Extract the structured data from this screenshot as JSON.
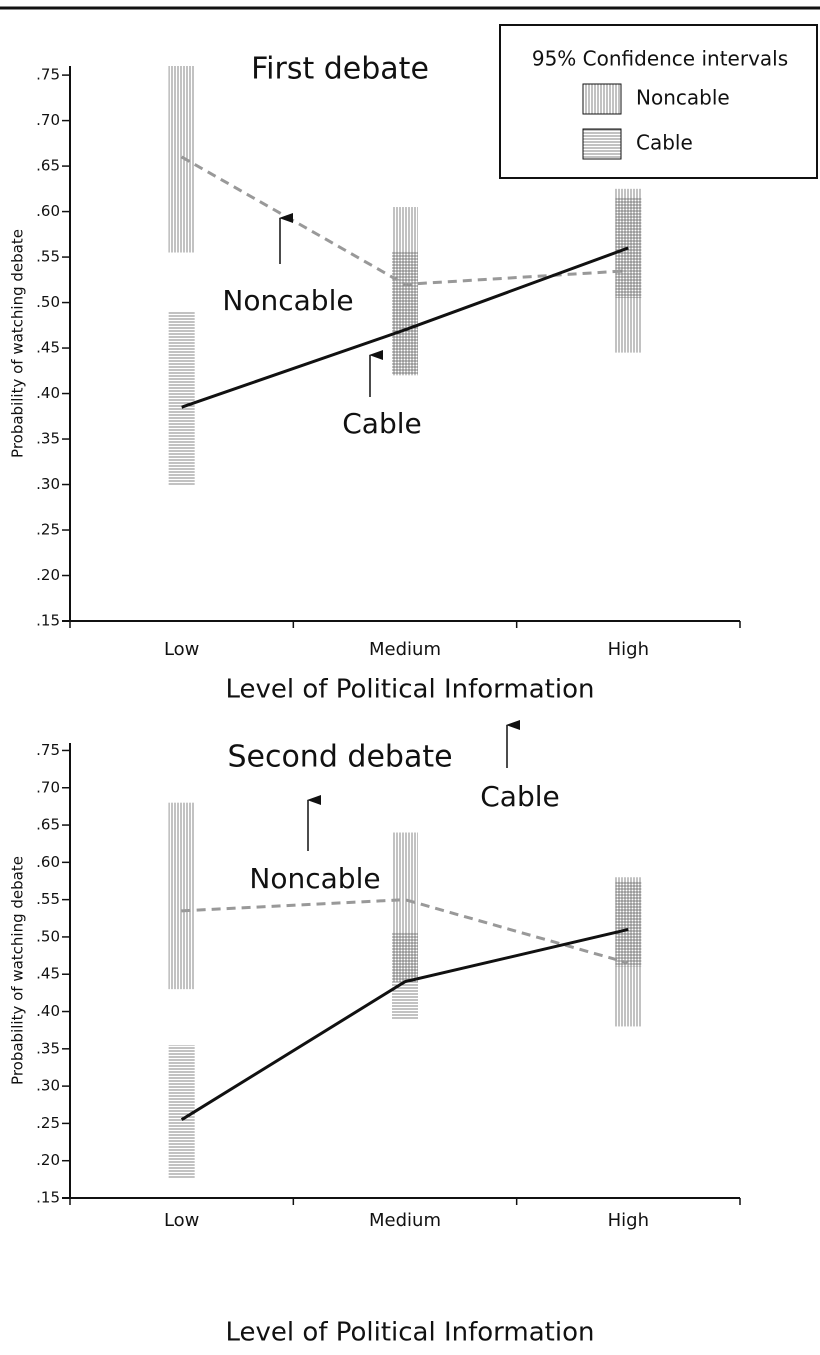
{
  "chart_data": [
    {
      "type": "line",
      "title": "First debate",
      "x_label": "Level of Political Information",
      "y_label": "Probability of watching debate",
      "categories": [
        "Low",
        "Medium",
        "High"
      ],
      "ylim": [
        0.15,
        0.76
      ],
      "yticks": [
        {
          "value": 0.15,
          "label": ".15"
        },
        {
          "value": 0.2,
          "label": ".20"
        },
        {
          "value": 0.25,
          "label": ".25"
        },
        {
          "value": 0.3,
          "label": ".30"
        },
        {
          "value": 0.35,
          "label": ".35"
        },
        {
          "value": 0.4,
          "label": ".40"
        },
        {
          "value": 0.45,
          "label": ".45"
        },
        {
          "value": 0.5,
          "label": ".50"
        },
        {
          "value": 0.55,
          "label": ".55"
        },
        {
          "value": 0.6,
          "label": ".60"
        },
        {
          "value": 0.65,
          "label": ".65"
        },
        {
          "value": 0.7,
          "label": ".70"
        },
        {
          "value": 0.75,
          "label": ".75"
        }
      ],
      "series": [
        {
          "name": "Noncable",
          "color": "#999999",
          "dashed": true,
          "pattern": "vertical",
          "values": [
            0.66,
            0.52,
            0.535
          ],
          "ci_lower": [
            0.555,
            0.42,
            0.445
          ],
          "ci_upper": [
            0.76,
            0.605,
            0.625
          ]
        },
        {
          "name": "Cable",
          "color": "#111111",
          "dashed": false,
          "pattern": "horizontal",
          "values": [
            0.385,
            0.47,
            0.56
          ],
          "ci_lower": [
            0.3,
            0.42,
            0.505
          ],
          "ci_upper": [
            0.49,
            0.555,
            0.615
          ]
        }
      ],
      "annotations": [
        "Noncable",
        "Cable"
      ],
      "legend": {
        "title": "95% Confidence intervals"
      }
    },
    {
      "type": "line",
      "title": "Second debate",
      "x_label": "Level of Political Information",
      "y_label": "Probability of watching debate",
      "categories": [
        "Low",
        "Medium",
        "High"
      ],
      "ylim": [
        0.15,
        0.76
      ],
      "yticks": [
        {
          "value": 0.15,
          "label": ".15"
        },
        {
          "value": 0.2,
          "label": ".20"
        },
        {
          "value": 0.25,
          "label": ".25"
        },
        {
          "value": 0.3,
          "label": ".30"
        },
        {
          "value": 0.35,
          "label": ".35"
        },
        {
          "value": 0.4,
          "label": ".40"
        },
        {
          "value": 0.45,
          "label": ".45"
        },
        {
          "value": 0.5,
          "label": ".50"
        },
        {
          "value": 0.55,
          "label": ".55"
        },
        {
          "value": 0.6,
          "label": ".60"
        },
        {
          "value": 0.65,
          "label": ".65"
        },
        {
          "value": 0.7,
          "label": ".70"
        },
        {
          "value": 0.75,
          "label": ".75"
        }
      ],
      "series": [
        {
          "name": "Noncable",
          "color": "#999999",
          "dashed": true,
          "pattern": "vertical",
          "values": [
            0.535,
            0.55,
            0.465
          ],
          "ci_lower": [
            0.43,
            0.44,
            0.38
          ],
          "ci_upper": [
            0.68,
            0.64,
            0.58
          ]
        },
        {
          "name": "Cable",
          "color": "#111111",
          "dashed": false,
          "pattern": "horizontal",
          "values": [
            0.255,
            0.44,
            0.51
          ],
          "ci_lower": [
            0.175,
            0.39,
            0.46
          ],
          "ci_upper": [
            0.355,
            0.505,
            0.575
          ]
        }
      ],
      "annotations": [
        "Noncable",
        "Cable"
      ]
    }
  ]
}
